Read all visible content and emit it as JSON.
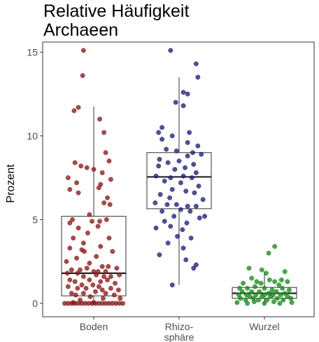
{
  "chart_data": {
    "type": "boxplot-jitter",
    "title_lines": [
      "Relative Häufigkeit",
      "Archaeen"
    ],
    "xlabel": "",
    "ylabel": "Prozent",
    "ylim": [
      -0.8,
      15.6
    ],
    "yticks": [
      0,
      5,
      10,
      15
    ],
    "categories": [
      {
        "label_lines": [
          "Boden"
        ],
        "color": "#8b1a1a"
      },
      {
        "label_lines": [
          "Rhizo-",
          "sphäre"
        ],
        "color": "#1f1f7a"
      },
      {
        "label_lines": [
          "Wurzel"
        ],
        "color": "#1a8a1a"
      }
    ],
    "boxes": [
      {
        "q1": 0.45,
        "median": 1.8,
        "q3": 5.2,
        "whisker_low": 0.0,
        "whisker_high": 11.75
      },
      {
        "q1": 5.65,
        "median": 7.55,
        "q3": 9.0,
        "whisker_low": 1.1,
        "whisker_high": 13.5
      },
      {
        "q1": 0.3,
        "median": 0.6,
        "q3": 0.95,
        "whisker_low": 0.0,
        "whisker_high": 1.9
      }
    ],
    "points": [
      [
        {
          "x": -0.12,
          "y": 15.1
        },
        {
          "x": -0.13,
          "y": 13.6
        },
        {
          "x": -0.18,
          "y": 11.7
        },
        {
          "x": -0.23,
          "y": 11.5
        },
        {
          "x": 0.07,
          "y": 11.0
        },
        {
          "x": 0.12,
          "y": 10.2
        },
        {
          "x": 0.14,
          "y": 9.0
        },
        {
          "x": 0.18,
          "y": 8.5
        },
        {
          "x": -0.22,
          "y": 8.4
        },
        {
          "x": -0.15,
          "y": 8.2
        },
        {
          "x": -0.08,
          "y": 8.1
        },
        {
          "x": 0.0,
          "y": 8.0
        },
        {
          "x": 0.1,
          "y": 7.8
        },
        {
          "x": -0.3,
          "y": 7.5
        },
        {
          "x": 0.2,
          "y": 7.4
        },
        {
          "x": -0.2,
          "y": 7.2
        },
        {
          "x": 0.08,
          "y": 7.1
        },
        {
          "x": -0.28,
          "y": 6.8
        },
        {
          "x": -0.18,
          "y": 6.6
        },
        {
          "x": 0.06,
          "y": 6.9
        },
        {
          "x": 0.16,
          "y": 6.3
        },
        {
          "x": 0.12,
          "y": 6.0
        },
        {
          "x": 0.19,
          "y": 5.9
        },
        {
          "x": -0.05,
          "y": 5.3
        },
        {
          "x": -0.25,
          "y": 5.0
        },
        {
          "x": -0.02,
          "y": 4.9
        },
        {
          "x": 0.07,
          "y": 4.9
        },
        {
          "x": 0.15,
          "y": 5.0
        },
        {
          "x": -0.28,
          "y": 4.8
        },
        {
          "x": -0.18,
          "y": 4.5
        },
        {
          "x": 0.05,
          "y": 4.6
        },
        {
          "x": -0.07,
          "y": 4.2
        },
        {
          "x": -0.24,
          "y": 3.9
        },
        {
          "x": 0.18,
          "y": 3.9
        },
        {
          "x": -0.12,
          "y": 3.6
        },
        {
          "x": 0.08,
          "y": 3.4
        },
        {
          "x": -0.28,
          "y": 3.3
        },
        {
          "x": -0.14,
          "y": 3.2
        },
        {
          "x": -0.11,
          "y": 3.1
        },
        {
          "x": 0.22,
          "y": 3.1
        },
        {
          "x": 0.03,
          "y": 2.8
        },
        {
          "x": -0.2,
          "y": 2.7
        },
        {
          "x": -0.32,
          "y": 2.5
        },
        {
          "x": -0.05,
          "y": 2.4
        },
        {
          "x": 0.1,
          "y": 2.2
        },
        {
          "x": 0.17,
          "y": 2.2
        },
        {
          "x": 0.27,
          "y": 2.1
        },
        {
          "x": -0.26,
          "y": 2.0
        },
        {
          "x": -0.16,
          "y": 2.0
        },
        {
          "x": -0.08,
          "y": 2.1
        },
        {
          "x": 0.0,
          "y": 1.9
        },
        {
          "x": 0.05,
          "y": 1.9
        },
        {
          "x": 0.14,
          "y": 1.9
        },
        {
          "x": -0.31,
          "y": 1.8
        },
        {
          "x": -0.19,
          "y": 1.8
        },
        {
          "x": -0.12,
          "y": 1.6
        },
        {
          "x": 0.03,
          "y": 1.7
        },
        {
          "x": 0.12,
          "y": 1.6
        },
        {
          "x": 0.2,
          "y": 1.6
        },
        {
          "x": 0.3,
          "y": 1.7
        },
        {
          "x": -0.28,
          "y": 1.4
        },
        {
          "x": -0.22,
          "y": 1.3
        },
        {
          "x": -0.05,
          "y": 1.4
        },
        {
          "x": 0.08,
          "y": 1.3
        },
        {
          "x": 0.16,
          "y": 1.4
        },
        {
          "x": -0.14,
          "y": 1.1
        },
        {
          "x": -0.01,
          "y": 1.1
        },
        {
          "x": 0.25,
          "y": 1.2
        },
        {
          "x": -0.3,
          "y": 1.0
        },
        {
          "x": 0.06,
          "y": 1.0
        },
        {
          "x": -0.19,
          "y": 0.9
        },
        {
          "x": -0.09,
          "y": 0.9
        },
        {
          "x": 0.1,
          "y": 0.8
        },
        {
          "x": 0.2,
          "y": 0.9
        },
        {
          "x": 0.29,
          "y": 0.8
        },
        {
          "x": -0.26,
          "y": 0.6
        },
        {
          "x": -0.12,
          "y": 0.6
        },
        {
          "x": 0.02,
          "y": 0.7
        },
        {
          "x": 0.14,
          "y": 0.6
        },
        {
          "x": -0.21,
          "y": 0.5
        },
        {
          "x": 0.24,
          "y": 0.5
        },
        {
          "x": -0.04,
          "y": 0.4
        },
        {
          "x": 0.31,
          "y": 0.3
        },
        {
          "x": -0.16,
          "y": 0.2
        },
        {
          "x": 0.11,
          "y": 0.3
        },
        {
          "x": -0.34,
          "y": 0.0
        },
        {
          "x": -0.3,
          "y": 0.0
        },
        {
          "x": -0.26,
          "y": 0.0
        },
        {
          "x": -0.22,
          "y": 0.0
        },
        {
          "x": -0.18,
          "y": 0.0
        },
        {
          "x": -0.14,
          "y": 0.0
        },
        {
          "x": -0.1,
          "y": 0.0
        },
        {
          "x": -0.06,
          "y": 0.0
        },
        {
          "x": -0.02,
          "y": 0.0
        },
        {
          "x": 0.02,
          "y": 0.0
        },
        {
          "x": 0.06,
          "y": 0.0
        },
        {
          "x": 0.1,
          "y": 0.0
        },
        {
          "x": 0.14,
          "y": 0.0
        },
        {
          "x": 0.18,
          "y": 0.0
        },
        {
          "x": 0.22,
          "y": 0.0
        },
        {
          "x": 0.26,
          "y": 0.0
        },
        {
          "x": 0.3,
          "y": 0.0
        },
        {
          "x": 0.34,
          "y": 0.0
        },
        {
          "x": -0.24,
          "y": 0.05
        },
        {
          "x": 0.0,
          "y": 0.05
        }
      ],
      [
        {
          "x": -0.1,
          "y": 15.1
        },
        {
          "x": 0.2,
          "y": 14.3
        },
        {
          "x": 0.22,
          "y": 13.5
        },
        {
          "x": 0.05,
          "y": 12.6
        },
        {
          "x": 0.1,
          "y": 12.5
        },
        {
          "x": -0.04,
          "y": 12.0
        },
        {
          "x": 0.05,
          "y": 11.8
        },
        {
          "x": -0.2,
          "y": 10.5
        },
        {
          "x": 0.12,
          "y": 10.2
        },
        {
          "x": -0.24,
          "y": 10.2
        },
        {
          "x": -0.08,
          "y": 10.0
        },
        {
          "x": -0.2,
          "y": 9.8
        },
        {
          "x": 0.1,
          "y": 9.6
        },
        {
          "x": 0.22,
          "y": 9.4
        },
        {
          "x": -0.15,
          "y": 9.2
        },
        {
          "x": -0.03,
          "y": 9.1
        },
        {
          "x": 0.16,
          "y": 9.0
        },
        {
          "x": 0.26,
          "y": 8.9
        },
        {
          "x": -0.23,
          "y": 8.6
        },
        {
          "x": 0.1,
          "y": 8.8
        },
        {
          "x": 0.0,
          "y": 8.5
        },
        {
          "x": -0.13,
          "y": 8.4
        },
        {
          "x": 0.17,
          "y": 8.3
        },
        {
          "x": -0.24,
          "y": 8.2
        },
        {
          "x": 0.07,
          "y": 8.1
        },
        {
          "x": -0.05,
          "y": 8.0
        },
        {
          "x": 0.2,
          "y": 7.8
        },
        {
          "x": -0.27,
          "y": 7.6
        },
        {
          "x": -0.1,
          "y": 7.5
        },
        {
          "x": 0.05,
          "y": 7.6
        },
        {
          "x": 0.15,
          "y": 7.5
        },
        {
          "x": -0.17,
          "y": 7.3
        },
        {
          "x": 0.02,
          "y": 7.2
        },
        {
          "x": 0.23,
          "y": 7.0
        },
        {
          "x": -0.08,
          "y": 6.8
        },
        {
          "x": 0.08,
          "y": 6.7
        },
        {
          "x": 0.18,
          "y": 6.6
        },
        {
          "x": -0.22,
          "y": 6.5
        },
        {
          "x": -0.11,
          "y": 6.3
        },
        {
          "x": 0.28,
          "y": 6.2
        },
        {
          "x": -0.28,
          "y": 6.0
        },
        {
          "x": -0.14,
          "y": 5.9
        },
        {
          "x": -0.03,
          "y": 5.9
        },
        {
          "x": 0.1,
          "y": 5.8
        },
        {
          "x": 0.2,
          "y": 5.8
        },
        {
          "x": -0.2,
          "y": 5.5
        },
        {
          "x": 0.02,
          "y": 5.6
        },
        {
          "x": 0.13,
          "y": 5.5
        },
        {
          "x": -0.06,
          "y": 5.2
        },
        {
          "x": 0.24,
          "y": 5.1
        },
        {
          "x": 0.3,
          "y": 5.2
        },
        {
          "x": -0.17,
          "y": 4.9
        },
        {
          "x": 0.09,
          "y": 4.8
        },
        {
          "x": -0.27,
          "y": 4.5
        },
        {
          "x": -0.1,
          "y": 4.6
        },
        {
          "x": 0.04,
          "y": 4.4
        },
        {
          "x": -0.02,
          "y": 4.0
        },
        {
          "x": 0.14,
          "y": 3.9
        },
        {
          "x": -0.13,
          "y": 3.6
        },
        {
          "x": 0.05,
          "y": 3.3
        },
        {
          "x": -0.23,
          "y": 2.9
        },
        {
          "x": 0.08,
          "y": 2.6
        },
        {
          "x": 0.2,
          "y": 2.3
        },
        {
          "x": 0.17,
          "y": 2.1
        },
        {
          "x": -0.08,
          "y": 1.1
        }
      ],
      [
        {
          "x": 0.12,
          "y": 3.4
        },
        {
          "x": 0.05,
          "y": 3.0
        },
        {
          "x": -0.18,
          "y": 2.1
        },
        {
          "x": -0.03,
          "y": 2.0
        },
        {
          "x": 0.02,
          "y": 1.8
        },
        {
          "x": 0.24,
          "y": 1.9
        },
        {
          "x": -0.15,
          "y": 1.5
        },
        {
          "x": 0.2,
          "y": 1.4
        },
        {
          "x": -0.09,
          "y": 1.3
        },
        {
          "x": 0.06,
          "y": 1.4
        },
        {
          "x": 0.12,
          "y": 1.3
        },
        {
          "x": 0.27,
          "y": 1.3
        },
        {
          "x": -0.25,
          "y": 1.2
        },
        {
          "x": -0.04,
          "y": 1.2
        },
        {
          "x": 0.17,
          "y": 1.1
        },
        {
          "x": -0.29,
          "y": 0.9
        },
        {
          "x": -0.2,
          "y": 0.9
        },
        {
          "x": -0.11,
          "y": 1.0
        },
        {
          "x": 0.0,
          "y": 0.9
        },
        {
          "x": 0.09,
          "y": 0.8
        },
        {
          "x": 0.21,
          "y": 0.9
        },
        {
          "x": 0.29,
          "y": 0.8
        },
        {
          "x": -0.26,
          "y": 0.7
        },
        {
          "x": -0.15,
          "y": 0.7
        },
        {
          "x": -0.06,
          "y": 0.7
        },
        {
          "x": 0.05,
          "y": 0.6
        },
        {
          "x": 0.14,
          "y": 0.7
        },
        {
          "x": 0.24,
          "y": 0.6
        },
        {
          "x": -0.3,
          "y": 0.5
        },
        {
          "x": -0.21,
          "y": 0.5
        },
        {
          "x": -0.1,
          "y": 0.5
        },
        {
          "x": 0.0,
          "y": 0.5
        },
        {
          "x": 0.1,
          "y": 0.5
        },
        {
          "x": 0.19,
          "y": 0.5
        },
        {
          "x": -0.17,
          "y": 0.4
        },
        {
          "x": -0.03,
          "y": 0.4
        },
        {
          "x": 0.07,
          "y": 0.4
        },
        {
          "x": 0.27,
          "y": 0.4
        },
        {
          "x": -0.28,
          "y": 0.3
        },
        {
          "x": -0.13,
          "y": 0.3
        },
        {
          "x": 0.15,
          "y": 0.3
        },
        {
          "x": 0.31,
          "y": 0.3
        },
        {
          "x": -0.22,
          "y": 0.2
        },
        {
          "x": -0.07,
          "y": 0.2
        },
        {
          "x": 0.03,
          "y": 0.2
        },
        {
          "x": 0.22,
          "y": 0.2
        },
        {
          "x": -0.12,
          "y": 0.1
        },
        {
          "x": 0.11,
          "y": 0.1
        },
        {
          "x": -0.32,
          "y": 0.05
        },
        {
          "x": 0.32,
          "y": 0.05
        },
        {
          "x": -0.2,
          "y": 0.0
        },
        {
          "x": 0.0,
          "y": 0.0
        },
        {
          "x": 0.18,
          "y": 0.0
        }
      ]
    ]
  }
}
